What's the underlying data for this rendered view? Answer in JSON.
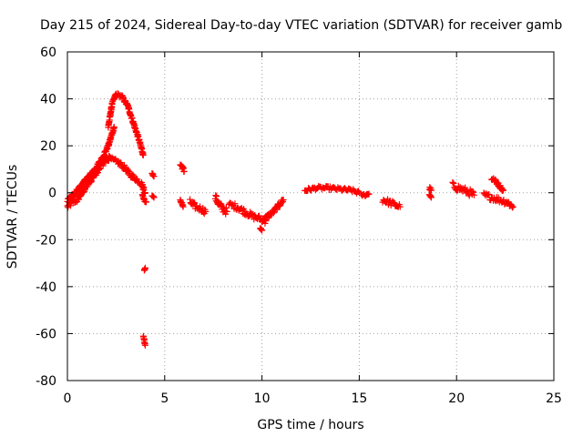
{
  "chart_data": {
    "type": "scatter",
    "title": "Day 215 of 2024, Sidereal Day-to-day VTEC variation (SDTVAR) for receiver gamb",
    "xlabel": "GPS time / hours",
    "ylabel": "SDTVAR / TECUs",
    "xlim": [
      0,
      25
    ],
    "ylim": [
      -80,
      60
    ],
    "x_ticks": [
      0,
      5,
      10,
      15,
      20,
      25
    ],
    "y_ticks": [
      -80,
      -60,
      -40,
      -20,
      0,
      20,
      40,
      60
    ],
    "grid": true,
    "marker": "+",
    "color": "#ff0000",
    "segments": [
      {
        "x": [
          0.0,
          0.25,
          0.5,
          0.75,
          1.0,
          1.25,
          1.5,
          1.75,
          2.0,
          2.2
        ],
        "y": [
          -6,
          -4,
          -3,
          0,
          3,
          6,
          9,
          12,
          14,
          15
        ],
        "spread": 2.5
      },
      {
        "x": [
          0.0,
          0.3,
          0.6,
          0.9,
          1.2,
          1.5,
          1.8,
          2.1,
          2.4
        ],
        "y": [
          -3,
          -1,
          2,
          5,
          8,
          11,
          15,
          20,
          28
        ],
        "spread": 1.5
      },
      {
        "x": [
          2.1,
          2.3,
          2.5,
          2.8,
          3.1,
          3.3,
          3.5,
          3.7,
          3.9
        ],
        "y": [
          28,
          38,
          42,
          41,
          37,
          32,
          27,
          22,
          16
        ],
        "spread": 1.5
      },
      {
        "x": [
          2.0,
          2.3,
          2.6,
          2.9,
          3.2,
          3.5,
          3.8,
          4.0
        ],
        "y": [
          15,
          14,
          13,
          11,
          8,
          6,
          4,
          0
        ],
        "spread": 2
      },
      {
        "x": [
          3.85,
          3.95,
          4.05
        ],
        "y": [
          -1,
          -3,
          -4
        ],
        "spread": 1
      },
      {
        "x": [
          3.95,
          4.0
        ],
        "y": [
          -33,
          -32
        ],
        "spread": 0.6
      },
      {
        "x": [
          3.9,
          3.95,
          4.0
        ],
        "y": [
          -61,
          -63,
          -65
        ],
        "spread": 0.8
      },
      {
        "x": [
          4.35,
          4.45
        ],
        "y": [
          8,
          7
        ],
        "spread": 1
      },
      {
        "x": [
          4.35,
          4.45
        ],
        "y": [
          -1,
          -2
        ],
        "spread": 0.8
      },
      {
        "x": [
          5.8,
          5.9,
          6.0
        ],
        "y": [
          12,
          11,
          9
        ],
        "spread": 2
      },
      {
        "x": [
          5.8,
          5.95
        ],
        "y": [
          -3,
          -6
        ],
        "spread": 1.5
      },
      {
        "x": [
          6.3,
          6.6,
          6.9,
          7.1
        ],
        "y": [
          -4,
          -6,
          -7,
          -8
        ],
        "spread": 2.5
      },
      {
        "x": [
          7.6,
          7.8,
          8.0,
          8.2
        ],
        "y": [
          -2,
          -5,
          -7,
          -8
        ],
        "spread": 3
      },
      {
        "x": [
          8.3,
          8.7,
          9.1,
          9.5,
          9.9,
          10.2
        ],
        "y": [
          -5,
          -6,
          -8,
          -10,
          -11,
          -12
        ],
        "spread": 2.5
      },
      {
        "x": [
          10.0,
          10.3,
          10.6,
          10.9,
          11.1
        ],
        "y": [
          -12,
          -10,
          -8,
          -5,
          -3
        ],
        "spread": 2
      },
      {
        "x": [
          9.9,
          10.0
        ],
        "y": [
          -15,
          -16
        ],
        "spread": 1
      },
      {
        "x": [
          12.2,
          12.8,
          13.4,
          14.0,
          14.6,
          15.0
        ],
        "y": [
          1,
          2,
          2,
          1.5,
          1,
          0
        ],
        "spread": 1.5
      },
      {
        "x": [
          15.1,
          15.3,
          15.5
        ],
        "y": [
          -1,
          -1,
          -0.5
        ],
        "spread": 1
      },
      {
        "x": [
          16.2,
          16.5,
          16.8,
          17.1
        ],
        "y": [
          -3,
          -4,
          -5,
          -6
        ],
        "spread": 2.5
      },
      {
        "x": [
          18.6,
          18.7
        ],
        "y": [
          2,
          1
        ],
        "spread": 1.5
      },
      {
        "x": [
          18.6,
          18.7
        ],
        "y": [
          -1,
          -2
        ],
        "spread": 1
      },
      {
        "x": [
          19.8,
          20.1,
          20.4,
          20.7,
          20.9
        ],
        "y": [
          3,
          2,
          1,
          0,
          -1
        ],
        "spread": 3
      },
      {
        "x": [
          21.4,
          21.8,
          22.2,
          22.6,
          22.9
        ],
        "y": [
          -1,
          -2,
          -3,
          -4,
          -6
        ],
        "spread": 2.5
      },
      {
        "x": [
          21.8,
          22.0,
          22.2,
          22.4
        ],
        "y": [
          6,
          5,
          3,
          1
        ],
        "spread": 1.5
      }
    ]
  }
}
